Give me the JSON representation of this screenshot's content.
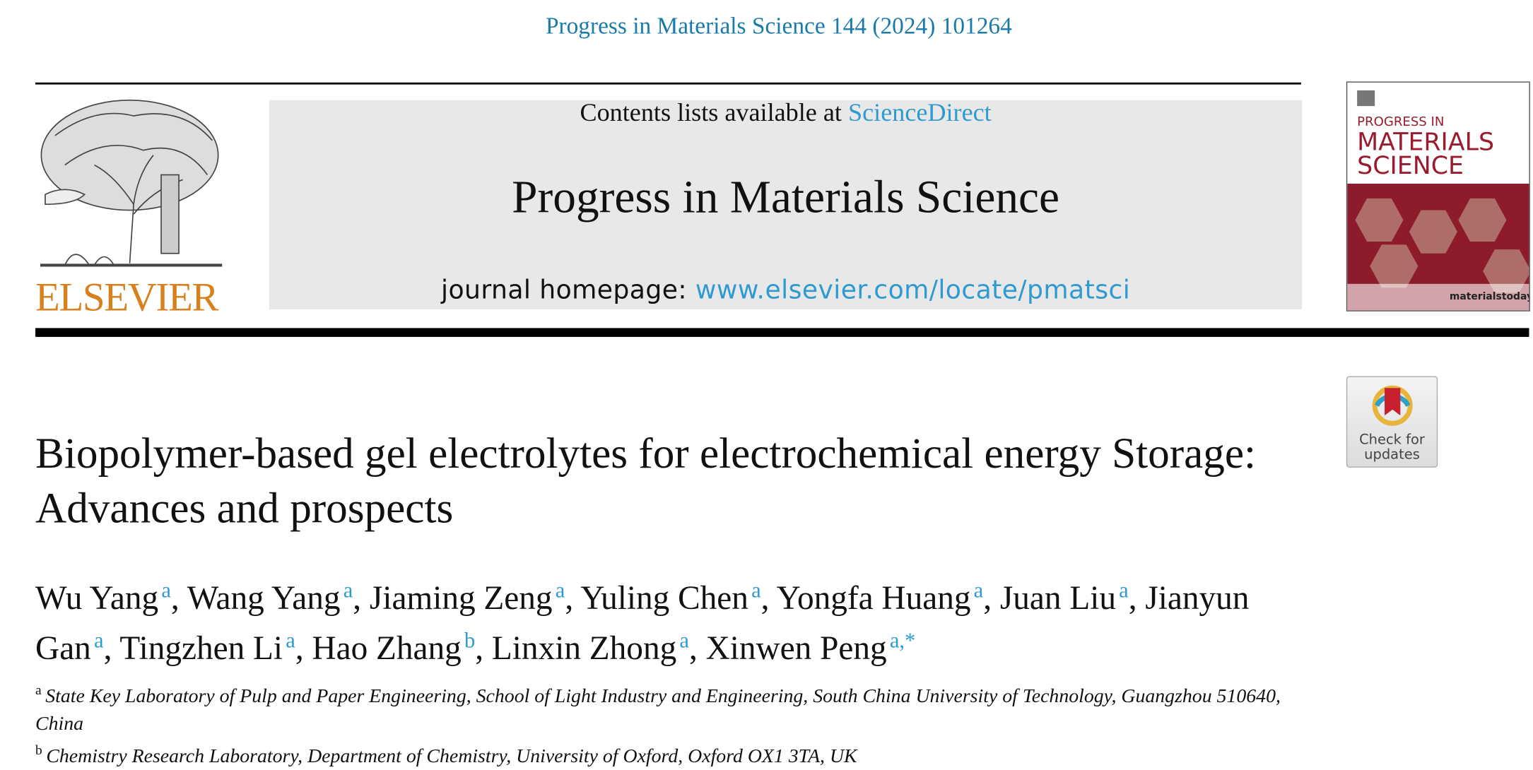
{
  "header": {
    "citation": "Progress in Materials Science 144 (2024) 101264",
    "publisher": "ELSEVIER",
    "contents_prefix": "Contents lists available at",
    "contents_link": "ScienceDirect",
    "journal": "Progress in Materials Science",
    "homepage_prefix": "journal homepage:",
    "homepage_link": "www.elsevier.com/locate/pmatsci"
  },
  "cover": {
    "line1": "PROGRESS IN",
    "line2": "MATERIALS",
    "line3": "SCIENCE",
    "brand": "materialstoday"
  },
  "check_updates": {
    "line1": "Check for",
    "line2": "updates"
  },
  "article": {
    "title": "Biopolymer-based gel electrolytes for electrochemical energy Storage: Advances and prospects",
    "authors": [
      {
        "name": "Wu Yang",
        "sup": "a"
      },
      {
        "name": "Wang Yang",
        "sup": "a"
      },
      {
        "name": "Jiaming Zeng",
        "sup": "a"
      },
      {
        "name": "Yuling Chen",
        "sup": "a"
      },
      {
        "name": "Yongfa Huang",
        "sup": "a"
      },
      {
        "name": "Juan Liu",
        "sup": "a"
      },
      {
        "name": "Jianyun Gan",
        "sup": "a"
      },
      {
        "name": "Tingzhen Li",
        "sup": "a"
      },
      {
        "name": "Hao Zhang",
        "sup": "b"
      },
      {
        "name": "Linxin Zhong",
        "sup": "a"
      },
      {
        "name": "Xinwen Peng",
        "sup": "a,*"
      }
    ],
    "affiliations": [
      {
        "label": "a",
        "text": "State Key Laboratory of Pulp and Paper Engineering, School of Light Industry and Engineering, South China University of Technology, Guangzhou 510640, China"
      },
      {
        "label": "b",
        "text": "Chemistry Research Laboratory, Department of Chemistry, University of Oxford, Oxford OX1 3TA, UK"
      }
    ]
  }
}
